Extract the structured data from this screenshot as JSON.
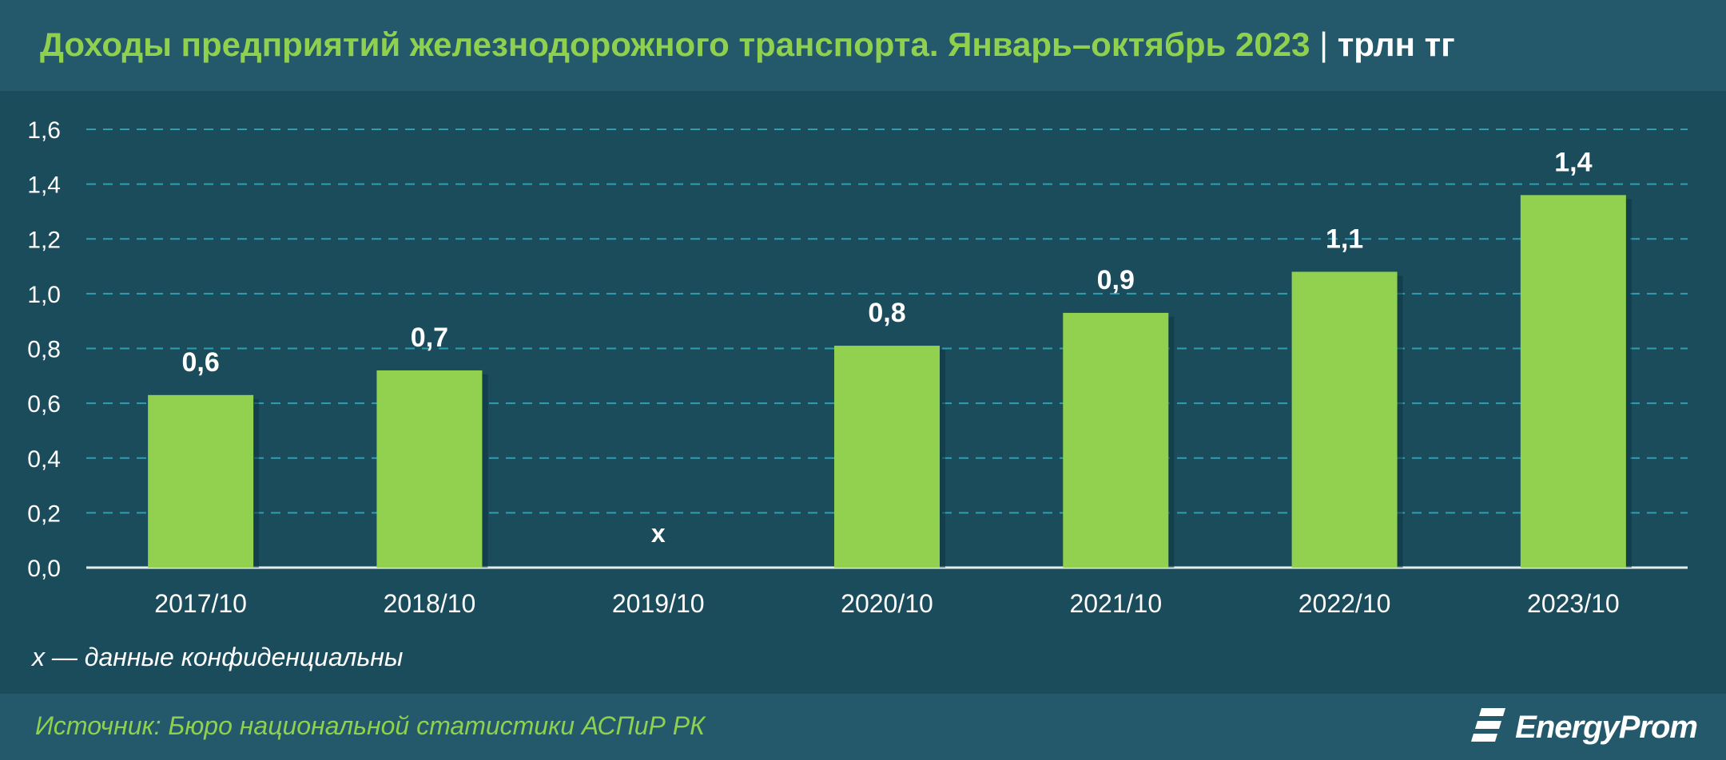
{
  "header": {
    "title": "Доходы предприятий железнодорожного транспорта. Январь–октябрь 2023",
    "separator": "|",
    "unit": "трлн тг"
  },
  "chart_data": {
    "type": "bar",
    "categories": [
      "2017/10",
      "2018/10",
      "2019/10",
      "2020/10",
      "2021/10",
      "2022/10",
      "2023/10"
    ],
    "values": [
      0.63,
      0.72,
      null,
      0.81,
      0.93,
      1.08,
      1.36
    ],
    "data_labels": [
      "0,6",
      "0,7",
      "x",
      "0,8",
      "0,9",
      "1,1",
      "1,4"
    ],
    "y_ticks": [
      "0,0",
      "0,2",
      "0,4",
      "0,6",
      "0,8",
      "1,0",
      "1,2",
      "1,4",
      "1,6"
    ],
    "ylim": [
      0,
      1.6
    ],
    "y_step": 0.2,
    "grid": true,
    "bar_color": "#92d050",
    "title": "Доходы предприятий железнодорожного транспорта. Январь–октябрь 2023",
    "xlabel": "",
    "ylabel": ""
  },
  "note": "x — данные конфиденциальны",
  "footer": {
    "source": "Источник: Бюро национальной статистики АСПиР РК",
    "logo_text": "EnergyProm",
    "logo_icon": "energyprom-logo-icon"
  },
  "colors": {
    "background": "#1a4c5c",
    "header_band": "#23596a",
    "accent_green": "#8fd14f",
    "grid": "#2f9fb0",
    "text": "#ffffff"
  }
}
